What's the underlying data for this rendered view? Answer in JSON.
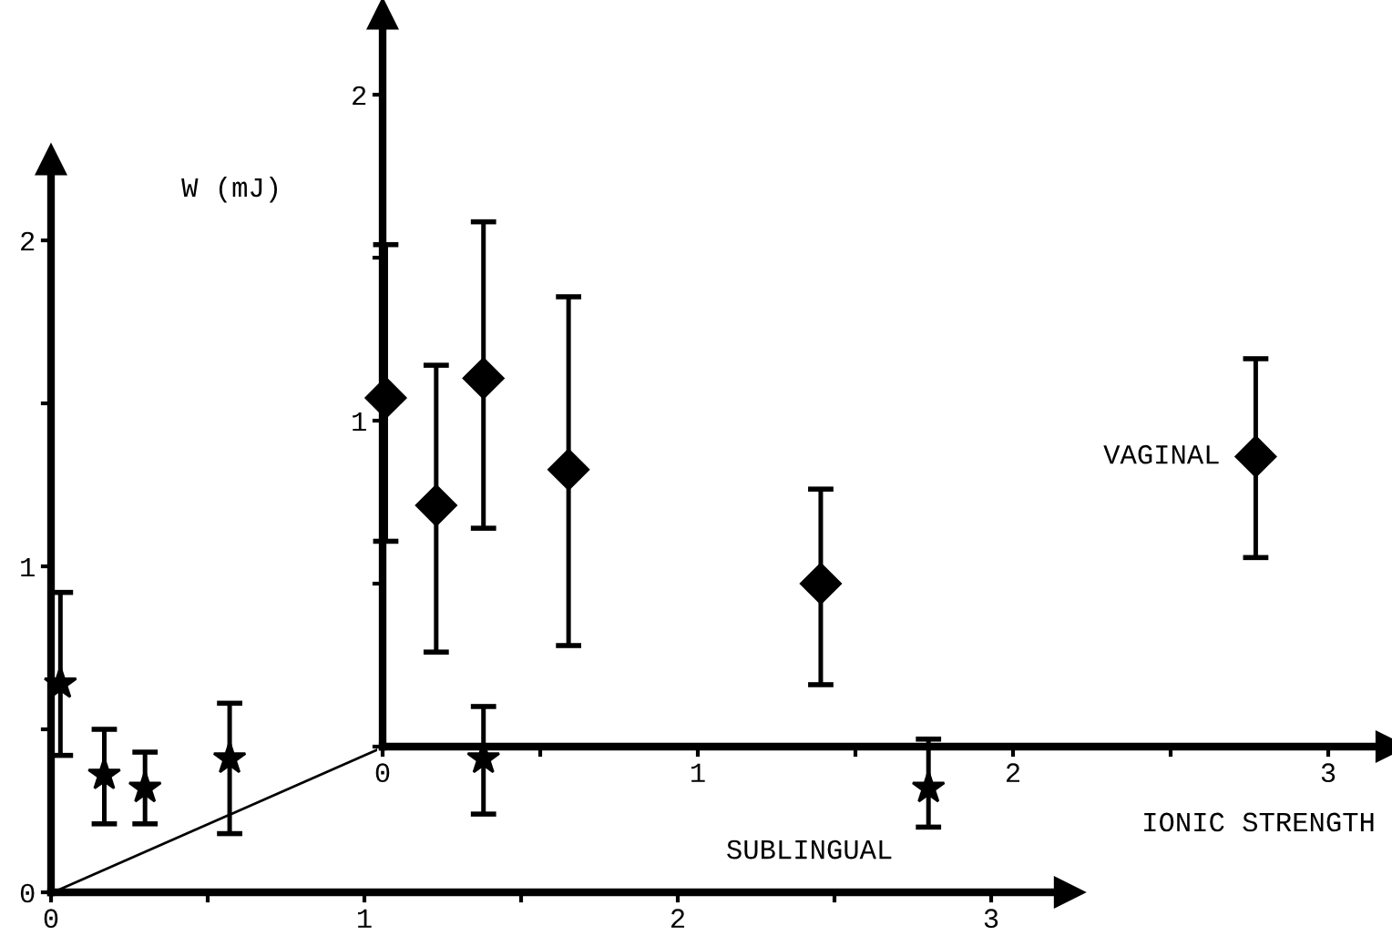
{
  "chart_data": [
    {
      "type": "scatter",
      "ylabel": "W (mJ)",
      "marker": "star",
      "grid": false,
      "legend": false,
      "xlim": [
        0,
        3.2
      ],
      "ylim": [
        0,
        2.2
      ],
      "xticks": [
        0,
        {
          "value": 0.5,
          "label": null
        },
        1,
        {
          "value": 1.5,
          "label": null
        },
        2,
        {
          "value": 2.5,
          "label": null
        },
        3
      ],
      "yticks": [
        0,
        {
          "value": 0.5,
          "label": null
        },
        1,
        {
          "value": 1.5,
          "label": null
        },
        2
      ],
      "series": [
        {
          "name": "SUBLINGUAL",
          "color": "#000000",
          "x": [
            0.03,
            0.17,
            0.3,
            0.57,
            1.38,
            2.8
          ],
          "values": [
            0.64,
            0.36,
            0.32,
            0.41,
            0.41,
            0.32
          ],
          "errors": [
            [
              0.42,
              0.92
            ],
            [
              0.21,
              0.5
            ],
            [
              0.21,
              0.43
            ],
            [
              0.18,
              0.58
            ],
            [
              0.24,
              0.57
            ],
            [
              0.2,
              0.47
            ]
          ]
        }
      ]
    },
    {
      "type": "scatter",
      "xlabel": "IONIC STRENGTH",
      "marker": "diamond",
      "grid": false,
      "legend": false,
      "xlim": [
        0,
        3.15
      ],
      "ylim": [
        0,
        2.2
      ],
      "xticks": [
        0,
        {
          "value": 0.5,
          "label": null
        },
        1,
        {
          "value": 1.5,
          "label": null
        },
        2,
        {
          "value": 2.5,
          "label": null
        },
        3
      ],
      "yticks": [
        {
          "value": 0,
          "label": null
        },
        {
          "value": 0.5,
          "label": null
        },
        1,
        {
          "value": 1.5,
          "label": null
        },
        2
      ],
      "series": [
        {
          "name": "VAGINAL",
          "color": "#000000",
          "x": [
            0.01,
            0.17,
            0.32,
            0.59,
            1.39,
            2.77
          ],
          "values": [
            1.07,
            0.74,
            1.13,
            0.85,
            0.5,
            0.89
          ],
          "errors": [
            [
              0.63,
              1.54
            ],
            [
              0.29,
              1.17
            ],
            [
              0.67,
              1.61
            ],
            [
              0.31,
              1.38
            ],
            [
              0.19,
              0.79
            ],
            [
              0.58,
              1.19
            ]
          ]
        }
      ]
    }
  ]
}
